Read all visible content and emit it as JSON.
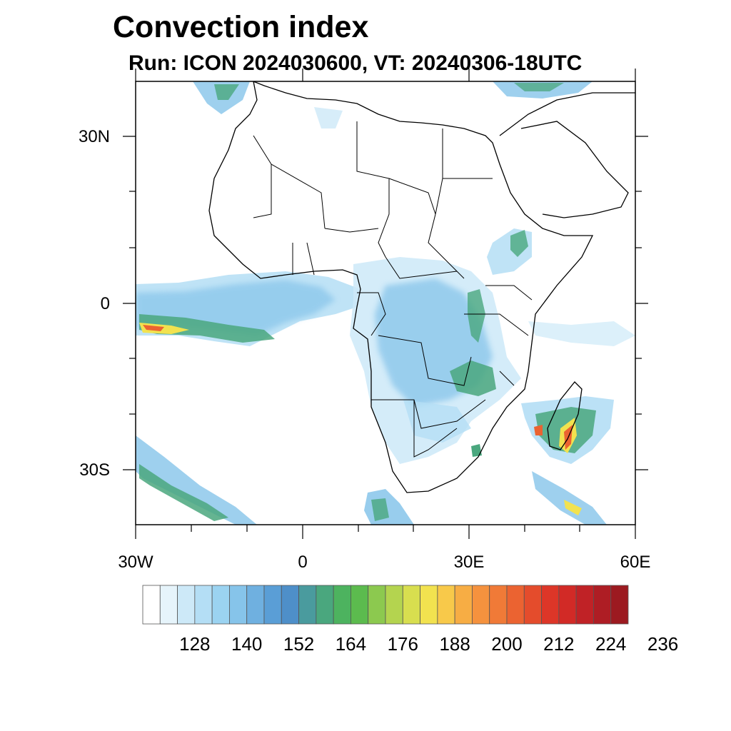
{
  "title": "Convection index",
  "subtitle": "Run: ICON 2024030600,  VT: 20240306-18UTC",
  "axes": {
    "lat_labels": [
      "30N",
      "0",
      "30S"
    ],
    "lon_labels": [
      "30W",
      "0",
      "30E",
      "60E"
    ]
  },
  "colorbar": {
    "labels": [
      "128",
      "140",
      "152",
      "164",
      "176",
      "188",
      "200",
      "212",
      "224",
      "236"
    ],
    "colors": [
      "#ffffff",
      "#e6f4fb",
      "#cde9f8",
      "#b4def5",
      "#9bd3f1",
      "#86c4ea",
      "#6fb0e0",
      "#5a9ed6",
      "#4e8fc9",
      "#4a9b9e",
      "#4aa77e",
      "#4db35f",
      "#5cbb4e",
      "#8cc94f",
      "#b4d44f",
      "#d8de4f",
      "#f2e24f",
      "#f8c94a",
      "#f7ad44",
      "#f5923e",
      "#f07a37",
      "#eb6331",
      "#e44c2c",
      "#dd3628",
      "#d22a26",
      "#c02226",
      "#ae1d24",
      "#9c1a20"
    ]
  },
  "map_extent": {
    "lon_min": -30,
    "lon_max": 60,
    "lat_min": -40,
    "lat_max": 40
  }
}
